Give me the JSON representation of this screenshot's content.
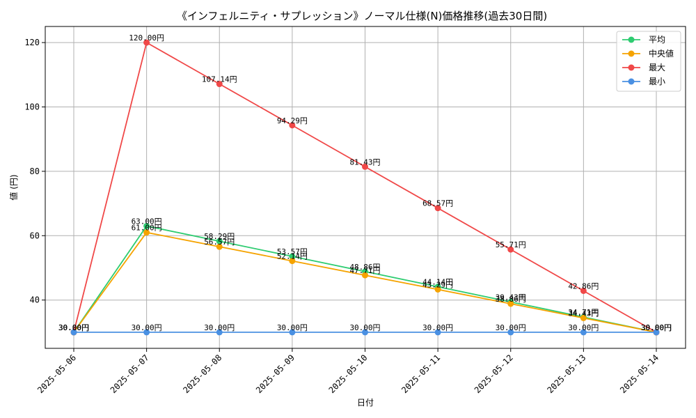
{
  "chart_data": {
    "type": "line",
    "title": "《インフェルニティ・サプレッション》ノーマル仕様(N)価格推移(過去30日間)",
    "xlabel": "日付",
    "ylabel": "値 (円)",
    "x": [
      "2025-05-06",
      "2025-05-07",
      "2025-05-08",
      "2025-05-09",
      "2025-05-10",
      "2025-05-11",
      "2025-05-12",
      "2025-05-13",
      "2025-05-14"
    ],
    "ylim": [
      25,
      125
    ],
    "yticks": [
      40,
      60,
      80,
      100,
      120
    ],
    "grid": true,
    "legend_position": "top-right",
    "value_suffix": "円",
    "series": [
      {
        "name": "平均",
        "color": "#2ecc71",
        "values": [
          30.0,
          63.0,
          58.29,
          53.57,
          48.86,
          44.14,
          39.43,
          34.71,
          30.0
        ]
      },
      {
        "name": "中央値",
        "color": "#f5a300",
        "values": [
          30.0,
          61.0,
          56.57,
          52.14,
          47.71,
          43.29,
          38.86,
          34.43,
          30.0
        ]
      },
      {
        "name": "最大",
        "color": "#f04848",
        "values": [
          30.0,
          120.0,
          107.14,
          94.29,
          81.43,
          68.57,
          55.71,
          42.86,
          30.0
        ]
      },
      {
        "name": "最小",
        "color": "#4a90e2",
        "values": [
          30.0,
          30.0,
          30.0,
          30.0,
          30.0,
          30.0,
          30.0,
          30.0,
          30.0
        ]
      }
    ]
  }
}
